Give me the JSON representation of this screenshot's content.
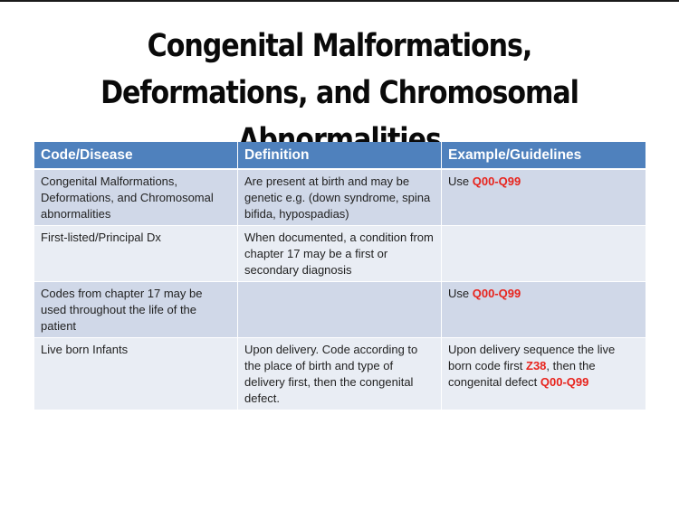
{
  "slide": {
    "title_lines": [
      "Congenital Malformations,",
      "Deformations, and Chromosomal",
      "Abnormalities"
    ]
  },
  "table": {
    "headers": [
      "Code/Disease",
      "Definition",
      "Example/Guidelines"
    ],
    "rows": [
      {
        "disease": "Congenital Malformations, Deformations, and Chromosomal abnormalities",
        "definition": "Are present at birth and may be genetic e.g. (down syndrome, spina bifida, hypospadias)",
        "guideline_prefix": "Use ",
        "guideline_code": "Q00-Q99"
      },
      {
        "disease": "First-listed/Principal Dx",
        "definition": "When documented, a condition from chapter 17 may be a first or secondary diagnosis",
        "guideline_prefix": "",
        "guideline_code": ""
      },
      {
        "disease": "Codes from chapter 17 may be used throughout the life of the patient",
        "definition": "",
        "guideline_prefix": "Use ",
        "guideline_code": "Q00-Q99"
      },
      {
        "disease": "Live born Infants",
        "definition": "Upon delivery.  Code according to the place of birth and type of delivery first, then the congenital defect.",
        "guideline_part1": "Upon delivery sequence the live born code first ",
        "guideline_code1": "Z38",
        "guideline_part2": ", then the congenital defect ",
        "guideline_code2": "Q00-Q99"
      }
    ]
  },
  "colors": {
    "header_bg": "#4f81bd",
    "row_odd_bg": "#d0d8e8",
    "row_even_bg": "#e9edf4",
    "code_red": "#e8231c"
  }
}
